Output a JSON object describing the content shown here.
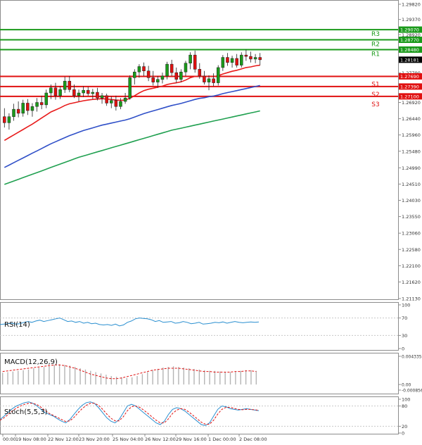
{
  "chart_data": [
    {
      "type": "candlestick",
      "panel": "price",
      "price_axis_ticks": [
        "1.29820",
        "1.29370",
        "1.28920",
        "1.28470",
        "1.27790",
        "1.27390",
        "1.26920",
        "1.26440",
        "1.25960",
        "1.25480",
        "1.24990",
        "1.24510",
        "1.24030",
        "1.23550",
        "1.23060",
        "1.22580",
        "1.22100",
        "1.21620",
        "1.21130"
      ],
      "ylim": [
        1.2113,
        1.2982
      ],
      "current_price": "1.28181",
      "levels": [
        {
          "name": "R3",
          "price": 1.2907,
          "label": "1.29070",
          "color": "#1a9a1a"
        },
        {
          "name": "R2",
          "price": 1.2877,
          "label": "1.28770",
          "color": "#1a9a1a"
        },
        {
          "name": "R1",
          "price": 1.2848,
          "label": "1.28480",
          "color": "#1a9a1a"
        },
        {
          "name": "S1",
          "price": 1.2769,
          "label": "1.27690",
          "color": "#e01010"
        },
        {
          "name": "S2",
          "price": 1.2739,
          "label": "1.27390",
          "color": "#e01010"
        },
        {
          "name": "S3",
          "price": 1.271,
          "label": "1.27100",
          "color": "#e01010"
        }
      ],
      "candles": [
        [
          1.265,
          1.2675,
          1.2618,
          1.2632
        ],
        [
          1.2632,
          1.266,
          1.2612,
          1.265
        ],
        [
          1.265,
          1.2688,
          1.2638,
          1.2672
        ],
        [
          1.2672,
          1.2695,
          1.2648,
          1.266
        ],
        [
          1.266,
          1.27,
          1.265,
          1.269
        ],
        [
          1.269,
          1.2702,
          1.2655,
          1.2668
        ],
        [
          1.2668,
          1.269,
          1.265,
          1.268
        ],
        [
          1.268,
          1.2705,
          1.2665,
          1.2692
        ],
        [
          1.2692,
          1.2712,
          1.2672,
          1.2685
        ],
        [
          1.2685,
          1.273,
          1.2675,
          1.272
        ],
        [
          1.272,
          1.2745,
          1.2702,
          1.2735
        ],
        [
          1.2735,
          1.275,
          1.27,
          1.2712
        ],
        [
          1.2712,
          1.274,
          1.2702,
          1.273
        ],
        [
          1.273,
          1.2768,
          1.272,
          1.2755
        ],
        [
          1.2755,
          1.277,
          1.2722,
          1.273
        ],
        [
          1.273,
          1.2745,
          1.2705,
          1.2712
        ],
        [
          1.2712,
          1.273,
          1.2695,
          1.272
        ],
        [
          1.272,
          1.274,
          1.2708,
          1.2728
        ],
        [
          1.2728,
          1.2738,
          1.2712,
          1.2718
        ],
        [
          1.2718,
          1.2732,
          1.2702,
          1.2722
        ],
        [
          1.2722,
          1.2735,
          1.2698,
          1.2705
        ],
        [
          1.2705,
          1.272,
          1.2688,
          1.2712
        ],
        [
          1.2712,
          1.2718,
          1.2682,
          1.269
        ],
        [
          1.269,
          1.271,
          1.2675,
          1.2698
        ],
        [
          1.2698,
          1.2712,
          1.2668,
          1.268
        ],
        [
          1.268,
          1.2705,
          1.2672,
          1.2695
        ],
        [
          1.2695,
          1.272,
          1.2688,
          1.2705
        ],
        [
          1.2705,
          1.2772,
          1.27,
          1.2765
        ],
        [
          1.2765,
          1.279,
          1.2745,
          1.2782
        ],
        [
          1.2782,
          1.2805,
          1.2765,
          1.2798
        ],
        [
          1.2798,
          1.281,
          1.277,
          1.2785
        ],
        [
          1.2785,
          1.28,
          1.2755,
          1.2765
        ],
        [
          1.2765,
          1.2785,
          1.2742,
          1.2752
        ],
        [
          1.2752,
          1.277,
          1.2735,
          1.276
        ],
        [
          1.276,
          1.278,
          1.2748,
          1.277
        ],
        [
          1.277,
          1.2812,
          1.276,
          1.2805
        ],
        [
          1.2805,
          1.2818,
          1.277,
          1.278
        ],
        [
          1.278,
          1.2795,
          1.275,
          1.276
        ],
        [
          1.276,
          1.279,
          1.2752,
          1.2782
        ],
        [
          1.2782,
          1.2815,
          1.277,
          1.2808
        ],
        [
          1.2808,
          1.284,
          1.279,
          1.2832
        ],
        [
          1.2832,
          1.2845,
          1.278,
          1.279
        ],
        [
          1.279,
          1.2808,
          1.2762,
          1.277
        ],
        [
          1.277,
          1.2785,
          1.2745,
          1.2752
        ],
        [
          1.2752,
          1.2772,
          1.2728,
          1.2762
        ],
        [
          1.2762,
          1.2778,
          1.274,
          1.275
        ],
        [
          1.275,
          1.2802,
          1.2742,
          1.2795
        ],
        [
          1.2795,
          1.2832,
          1.2785,
          1.2825
        ],
        [
          1.2825,
          1.2838,
          1.28,
          1.281
        ],
        [
          1.281,
          1.283,
          1.2795,
          1.2822
        ],
        [
          1.2822,
          1.2835,
          1.2795,
          1.2802
        ],
        [
          1.2802,
          1.284,
          1.2795,
          1.2832
        ],
        [
          1.2832,
          1.2848,
          1.2815,
          1.2828
        ],
        [
          1.2828,
          1.2842,
          1.281,
          1.282
        ],
        [
          1.282,
          1.2835,
          1.2808,
          1.2825
        ],
        [
          1.2825,
          1.2838,
          1.2802,
          1.2818
        ]
      ],
      "ma_fast": [
        1.258,
        1.2588,
        1.2596,
        1.2604,
        1.2612,
        1.262,
        1.2628,
        1.2637,
        1.2646,
        1.2655,
        1.2664,
        1.267,
        1.2676,
        1.2683,
        1.2688,
        1.2691,
        1.2694,
        1.2697,
        1.2699,
        1.2701,
        1.2702,
        1.2703,
        1.2702,
        1.2701,
        1.2699,
        1.2698,
        1.2699,
        1.2704,
        1.2712,
        1.272,
        1.2727,
        1.2731,
        1.2734,
        1.2737,
        1.274,
        1.2745,
        1.2748,
        1.275,
        1.2753,
        1.2758,
        1.2765,
        1.2769,
        1.277,
        1.2769,
        1.2769,
        1.2768,
        1.2771,
        1.2776,
        1.278,
        1.2784,
        1.2787,
        1.2791,
        1.2795,
        1.2797,
        1.28,
        1.2802
      ],
      "ma_mid": [
        1.25,
        1.2507,
        1.2514,
        1.2521,
        1.2528,
        1.2535,
        1.2542,
        1.2549,
        1.2556,
        1.2563,
        1.257,
        1.2576,
        1.2582,
        1.2588,
        1.2594,
        1.2599,
        1.2604,
        1.2609,
        1.2613,
        1.2617,
        1.2621,
        1.2625,
        1.2628,
        1.2631,
        1.2634,
        1.2637,
        1.264,
        1.2644,
        1.2649,
        1.2654,
        1.2659,
        1.2663,
        1.2667,
        1.2671,
        1.2675,
        1.2679,
        1.2683,
        1.2686,
        1.2689,
        1.2693,
        1.2697,
        1.2701,
        1.2704,
        1.2706,
        1.2709,
        1.2711,
        1.2714,
        1.2718,
        1.2721,
        1.2724,
        1.2727,
        1.273,
        1.2733,
        1.2736,
        1.2739,
        1.2742
      ],
      "ma_slow": [
        1.245,
        1.2455,
        1.246,
        1.2465,
        1.247,
        1.2475,
        1.248,
        1.2485,
        1.249,
        1.2495,
        1.25,
        1.2505,
        1.251,
        1.2515,
        1.252,
        1.2525,
        1.253,
        1.2534,
        1.2538,
        1.2542,
        1.2546,
        1.255,
        1.2554,
        1.2558,
        1.2562,
        1.2566,
        1.257,
        1.2574,
        1.2578,
        1.2582,
        1.2586,
        1.259,
        1.2594,
        1.2598,
        1.2602,
        1.2606,
        1.261,
        1.2613,
        1.2616,
        1.2619,
        1.2622,
        1.2625,
        1.2628,
        1.2631,
        1.2634,
        1.2637,
        1.264,
        1.2643,
        1.2646,
        1.2649,
        1.2652,
        1.2655,
        1.2658,
        1.2661,
        1.2664,
        1.2667
      ],
      "x_labels": [
        "00:00",
        "19 Nov 08:00",
        "22 Nov 12:00",
        "23 Nov 20:00",
        "25 Nov 04:00",
        "26 Nov 12:00",
        "29 Nov 16:00",
        "1 Dec 00:00",
        "2 Dec 08:00"
      ],
      "colors": {
        "up": "#1a9a1a",
        "down": "#e01010",
        "ma_fast": "#e81c1c",
        "ma_mid": "#3050c8",
        "ma_slow": "#20a050"
      }
    },
    {
      "type": "line",
      "panel": "rsi",
      "title": "RSI(14)",
      "ticks": [
        "100",
        "70",
        "30",
        "0"
      ],
      "ylim": [
        0,
        100
      ],
      "values": [
        55,
        56,
        57,
        58,
        56,
        57,
        60,
        62,
        60,
        63,
        65,
        62,
        64,
        66,
        68,
        70,
        66,
        62,
        63,
        60,
        62,
        58,
        60,
        57,
        58,
        55,
        54,
        55,
        53,
        56,
        52,
        54,
        60,
        63,
        68,
        70,
        69,
        68,
        66,
        62,
        64,
        60,
        61,
        62,
        58,
        59,
        62,
        60,
        57,
        58,
        60,
        56,
        57,
        58,
        60,
        59,
        61,
        58,
        60,
        62,
        60,
        59,
        60,
        61,
        60,
        61
      ]
    },
    {
      "type": "bar",
      "panel": "macd",
      "title": "MACD(12,26,9)",
      "ticks": [
        "0.004335",
        "0.00",
        "-0.000856"
      ],
      "ylim": [
        -0.000856,
        0.004335
      ],
      "histogram": [
        0.0018,
        0.0019,
        0.002,
        0.0021,
        0.0022,
        0.0023,
        0.0025,
        0.0026,
        0.0027,
        0.0028,
        0.003,
        0.0031,
        0.003,
        0.0029,
        0.0027,
        0.0025,
        0.0023,
        0.0021,
        0.0019,
        0.0017,
        0.0015,
        0.0013,
        0.0012,
        0.0011,
        0.001,
        0.0011,
        0.0013,
        0.0016,
        0.0019,
        0.0022,
        0.0024,
        0.0026,
        0.0027,
        0.0028,
        0.0027,
        0.0026,
        0.0025,
        0.0024,
        0.0023,
        0.0022,
        0.0021,
        0.0021,
        0.002,
        0.0019,
        0.0019,
        0.002,
        0.0021,
        0.0022,
        0.0022,
        0.0021
      ],
      "signal": [
        0.002,
        0.0021,
        0.0022,
        0.0023,
        0.0024,
        0.0025,
        0.0026,
        0.0027,
        0.0028,
        0.0029,
        0.003,
        0.003,
        0.0029,
        0.0027,
        0.0025,
        0.0022,
        0.0019,
        0.0016,
        0.0014,
        0.0012,
        0.001,
        0.0009,
        0.0009,
        0.001,
        0.0012,
        0.0014,
        0.0016,
        0.0018,
        0.002,
        0.0022,
        0.0023,
        0.0024,
        0.0025,
        0.0025,
        0.0025,
        0.0024,
        0.0023,
        0.0022,
        0.0021,
        0.002,
        0.002,
        0.0019,
        0.0019,
        0.0019,
        0.0019,
        0.002,
        0.002,
        0.0021,
        0.0021,
        0.002
      ]
    },
    {
      "type": "line",
      "panel": "stoch",
      "title": "Stoch(5,5,3)",
      "ticks": [
        "100",
        "80",
        "20",
        "0"
      ],
      "ylim": [
        0,
        100
      ],
      "main": [
        40,
        50,
        62,
        72,
        80,
        85,
        90,
        92,
        88,
        80,
        70,
        60,
        55,
        50,
        42,
        35,
        30,
        40,
        55,
        70,
        82,
        90,
        92,
        88,
        75,
        60,
        45,
        35,
        30,
        40,
        60,
        80,
        85,
        80,
        70,
        60,
        50,
        40,
        30,
        25,
        35,
        55,
        70,
        75,
        72,
        65,
        55,
        45,
        35,
        25,
        22,
        30,
        50,
        70,
        80,
        78,
        72,
        70,
        68,
        70,
        72,
        70,
        68,
        66
      ],
      "signal": [
        38,
        45,
        55,
        65,
        74,
        80,
        85,
        88,
        88,
        84,
        76,
        66,
        58,
        52,
        46,
        40,
        34,
        36,
        46,
        60,
        72,
        82,
        88,
        88,
        82,
        70,
        56,
        44,
        36,
        36,
        48,
        66,
        78,
        80,
        76,
        68,
        58,
        48,
        38,
        30,
        30,
        42,
        58,
        68,
        72,
        70,
        62,
        52,
        42,
        32,
        26,
        26,
        38,
        56,
        70,
        76,
        76,
        73,
        70,
        69,
        70,
        70,
        69,
        67
      ]
    }
  ]
}
